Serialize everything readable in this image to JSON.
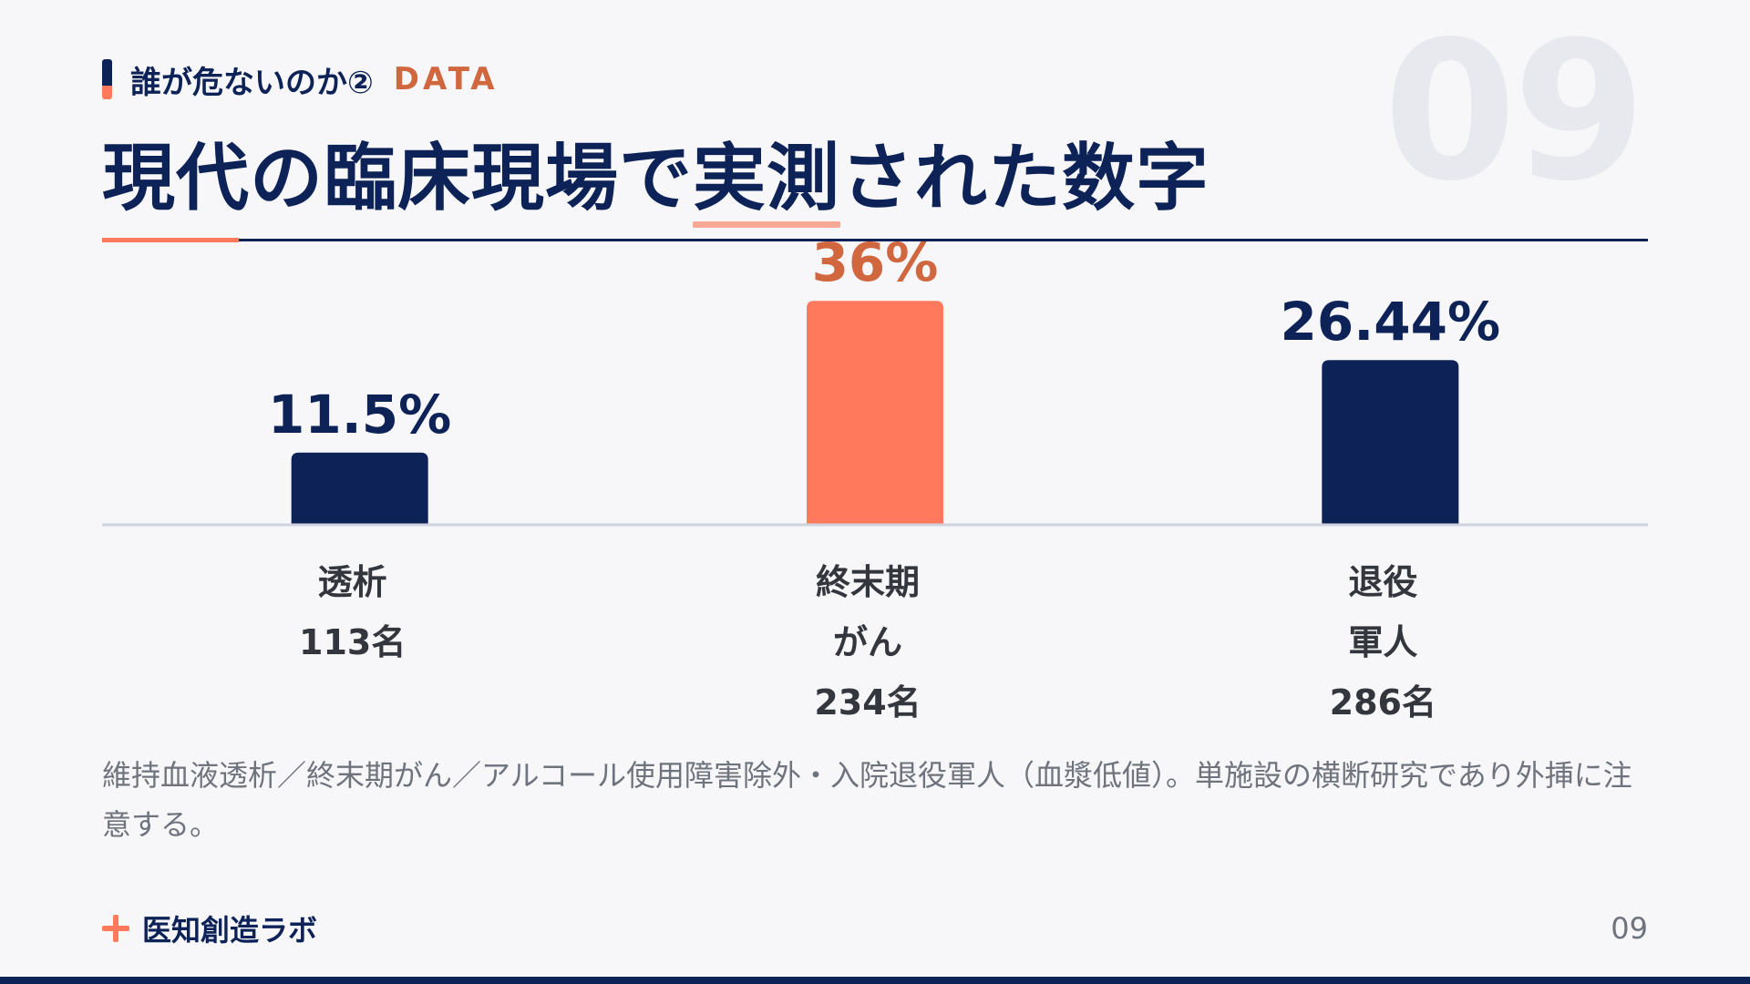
{
  "header": {
    "eyebrow": "誰が危ないのか②",
    "tag": "DATA",
    "title_before": "現代の臨床現場で",
    "title_highlight": "実測",
    "title_after": "された数字",
    "slide_number_large": "09"
  },
  "chart_data": {
    "type": "bar",
    "title": "",
    "xlabel": "",
    "ylabel": "",
    "unit": "%",
    "ylim": [
      0,
      50
    ],
    "grid": false,
    "categories": [
      "透析\n113名",
      "終末期\nがん\n234名",
      "退役\n軍人\n286名"
    ],
    "values": [
      11.5,
      36,
      26.44
    ],
    "value_labels": [
      "11.5%",
      "36%",
      "26.44%"
    ],
    "highlight_index": 1
  },
  "colors": {
    "navy": "#0d2358",
    "coral": "#ff7a5c",
    "coral_text": "#d0673f",
    "axis": "#cfd3db"
  },
  "note": "維持血液透析／終末期がん／アルコール使用障害除外・入院退役軍人（血漿低値）。単施設の横断研究であり外挿に注意する。",
  "footer": {
    "brand": "医知創造ラボ",
    "brand_icon": "plus-icon",
    "page": "09"
  }
}
